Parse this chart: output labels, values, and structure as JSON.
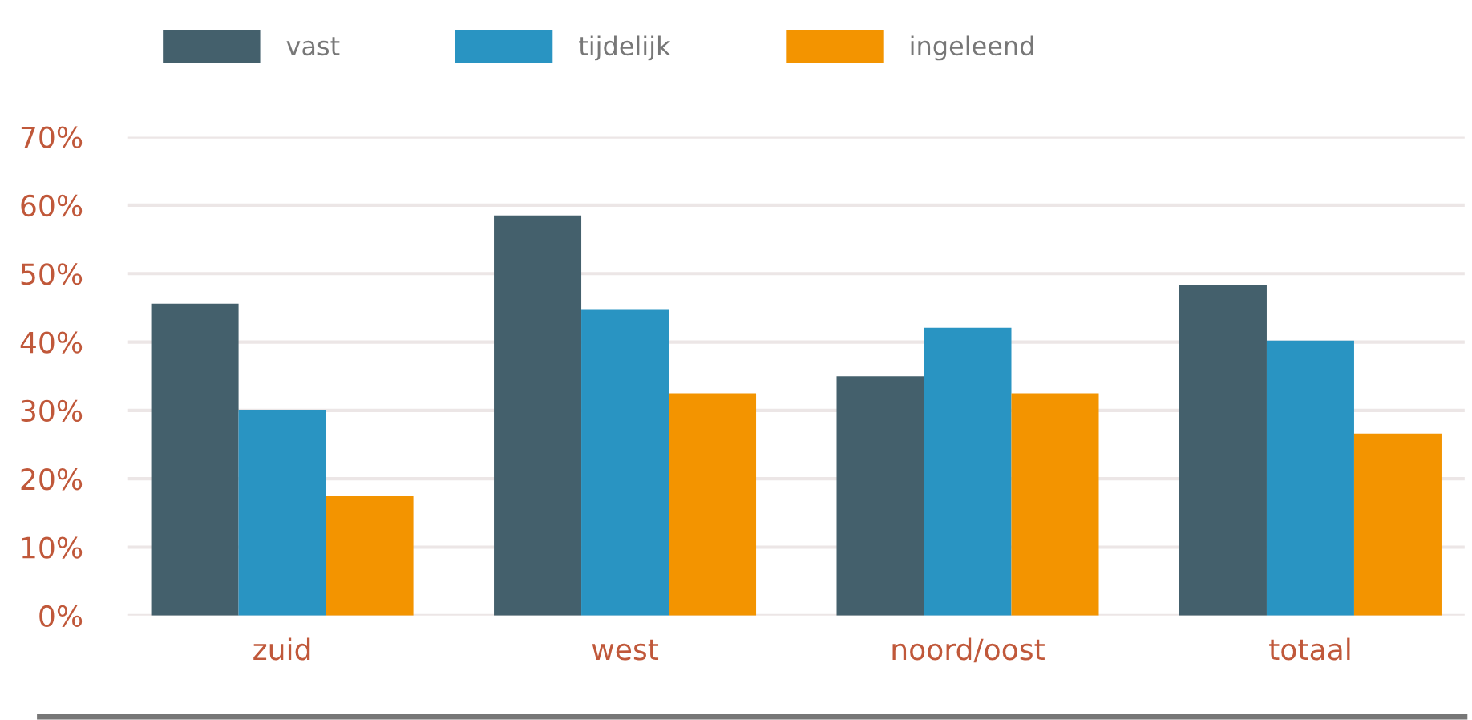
{
  "chart_data": {
    "type": "bar",
    "categories": [
      "zuid",
      "west",
      "noord/oost",
      "totaal"
    ],
    "series": [
      {
        "name": "vast",
        "color": "#44606c",
        "values": [
          45.6,
          58.5,
          35.0,
          48.4
        ]
      },
      {
        "name": "tijdelijk",
        "color": "#2994c2",
        "values": [
          30.1,
          44.7,
          42.1,
          40.2
        ]
      },
      {
        "name": "ingeleend",
        "color": "#f39400",
        "values": [
          17.5,
          32.5,
          32.5,
          26.6
        ]
      }
    ],
    "ylim": [
      0,
      70
    ],
    "yticks": [
      {
        "value": 0,
        "label": "0%"
      },
      {
        "value": 10,
        "label": "10%"
      },
      {
        "value": 20,
        "label": "20%"
      },
      {
        "value": 30,
        "label": "30%"
      },
      {
        "value": 40,
        "label": "40%"
      },
      {
        "value": 50,
        "label": "50%"
      },
      {
        "value": 60,
        "label": "60%"
      },
      {
        "value": 70,
        "label": "70%"
      }
    ],
    "grid": "y",
    "legend": "top left"
  }
}
